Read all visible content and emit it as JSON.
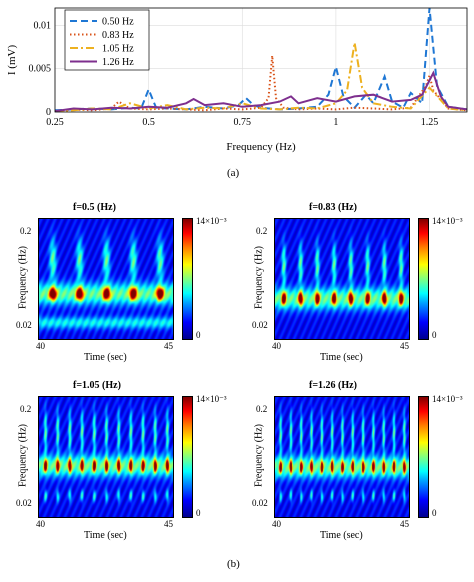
{
  "chart_data": [
    {
      "type": "line",
      "panel_label": "(a)",
      "xlabel": "Frequency (Hz)",
      "ylabel": "I (mV)",
      "xlim": [
        0.25,
        1.35
      ],
      "ylim": [
        0,
        0.012
      ],
      "xticks": [
        "0.25",
        "0.5",
        "0.75",
        "1",
        "1.25"
      ],
      "xtick_values": [
        0.25,
        0.5,
        0.75,
        1.0,
        1.25
      ],
      "yticks": [
        "0",
        "0.005",
        "0.01"
      ],
      "ytick_values": [
        0,
        0.005,
        0.01
      ],
      "grid": true,
      "legend_position": "top-left",
      "series": [
        {
          "name": "0.50 Hz",
          "color": "#1f77d4",
          "style": "dashed",
          "x": [
            0.25,
            0.3,
            0.35,
            0.4,
            0.45,
            0.48,
            0.5,
            0.52,
            0.55,
            0.6,
            0.65,
            0.7,
            0.74,
            0.76,
            0.78,
            0.8,
            0.85,
            0.9,
            0.95,
            0.98,
            1.0,
            1.02,
            1.05,
            1.08,
            1.1,
            1.13,
            1.15,
            1.18,
            1.2,
            1.23,
            1.25,
            1.27,
            1.3,
            1.35
          ],
          "y": [
            0.0002,
            0.0003,
            0.0004,
            0.0003,
            0.0005,
            0.0004,
            0.0026,
            0.0005,
            0.0004,
            0.0003,
            0.0006,
            0.0004,
            0.0008,
            0.0016,
            0.0008,
            0.0005,
            0.0003,
            0.0004,
            0.0006,
            0.002,
            0.0052,
            0.0018,
            0.0005,
            0.002,
            0.001,
            0.0041,
            0.0012,
            0.0005,
            0.0022,
            0.001,
            0.0122,
            0.003,
            0.0006,
            0.0003
          ]
        },
        {
          "name": "0.83 Hz",
          "color": "#d95319",
          "style": "dotted",
          "x": [
            0.25,
            0.3,
            0.35,
            0.4,
            0.42,
            0.45,
            0.5,
            0.55,
            0.6,
            0.65,
            0.7,
            0.75,
            0.8,
            0.82,
            0.83,
            0.84,
            0.86,
            0.9,
            0.95,
            1.0,
            1.05,
            1.1,
            1.15,
            1.2,
            1.24,
            1.25,
            1.26,
            1.3,
            1.35
          ],
          "y": [
            0.0001,
            0.0003,
            0.0002,
            0.0004,
            0.0012,
            0.0004,
            0.0003,
            0.0004,
            0.0003,
            0.0002,
            0.0004,
            0.0003,
            0.0005,
            0.0016,
            0.0065,
            0.0016,
            0.0005,
            0.0003,
            0.0004,
            0.0003,
            0.0005,
            0.0004,
            0.0003,
            0.0005,
            0.003,
            0.0042,
            0.0025,
            0.0004,
            0.0002
          ]
        },
        {
          "name": "1.05 Hz",
          "color": "#edb120",
          "style": "dashdot",
          "x": [
            0.25,
            0.3,
            0.35,
            0.4,
            0.45,
            0.5,
            0.55,
            0.6,
            0.65,
            0.7,
            0.75,
            0.8,
            0.85,
            0.9,
            0.95,
            1.0,
            1.03,
            1.05,
            1.07,
            1.1,
            1.15,
            1.2,
            1.25,
            1.3,
            1.35
          ],
          "y": [
            0.0001,
            0.0002,
            0.0004,
            0.0003,
            0.001,
            0.0004,
            0.0008,
            0.0003,
            0.0005,
            0.0004,
            0.001,
            0.0004,
            0.0003,
            0.0005,
            0.0004,
            0.001,
            0.0025,
            0.008,
            0.0028,
            0.001,
            0.0006,
            0.0004,
            0.0028,
            0.0004,
            0.0002
          ]
        },
        {
          "name": "1.26 Hz",
          "color": "#7e2f8e",
          "style": "solid",
          "x": [
            0.25,
            0.3,
            0.35,
            0.4,
            0.45,
            0.5,
            0.55,
            0.6,
            0.62,
            0.65,
            0.7,
            0.75,
            0.8,
            0.85,
            0.88,
            0.9,
            0.95,
            1.0,
            1.05,
            1.1,
            1.15,
            1.2,
            1.23,
            1.26,
            1.28,
            1.3,
            1.35
          ],
          "y": [
            0.0001,
            0.0004,
            0.0003,
            0.0005,
            0.0004,
            0.0006,
            0.0005,
            0.001,
            0.0015,
            0.0008,
            0.001,
            0.0006,
            0.0008,
            0.0012,
            0.0018,
            0.001,
            0.0016,
            0.0012,
            0.0018,
            0.002,
            0.0012,
            0.0014,
            0.002,
            0.0045,
            0.0018,
            0.0006,
            0.0003
          ]
        }
      ]
    },
    {
      "type": "heatmap",
      "panel_label": "(b)",
      "subplots": [
        {
          "title": "f=0.5 (Hz)",
          "freq": 0.5
        },
        {
          "title": "f=0.83 (Hz)",
          "freq": 0.83
        },
        {
          "title": "f=1.05 (Hz)",
          "freq": 1.05
        },
        {
          "title": "f=1.26 (Hz)",
          "freq": 1.26
        }
      ],
      "xlabel": "Time (sec)",
      "ylabel": "Frequency (Hz)",
      "xticks": [
        "40",
        "45"
      ],
      "yticks": [
        "0.2",
        "0.02"
      ],
      "colorbar_ticks": [
        "14×10⁻³",
        "0"
      ]
    }
  ],
  "panel_a_label": "(a)",
  "panel_b_label": "(b)"
}
